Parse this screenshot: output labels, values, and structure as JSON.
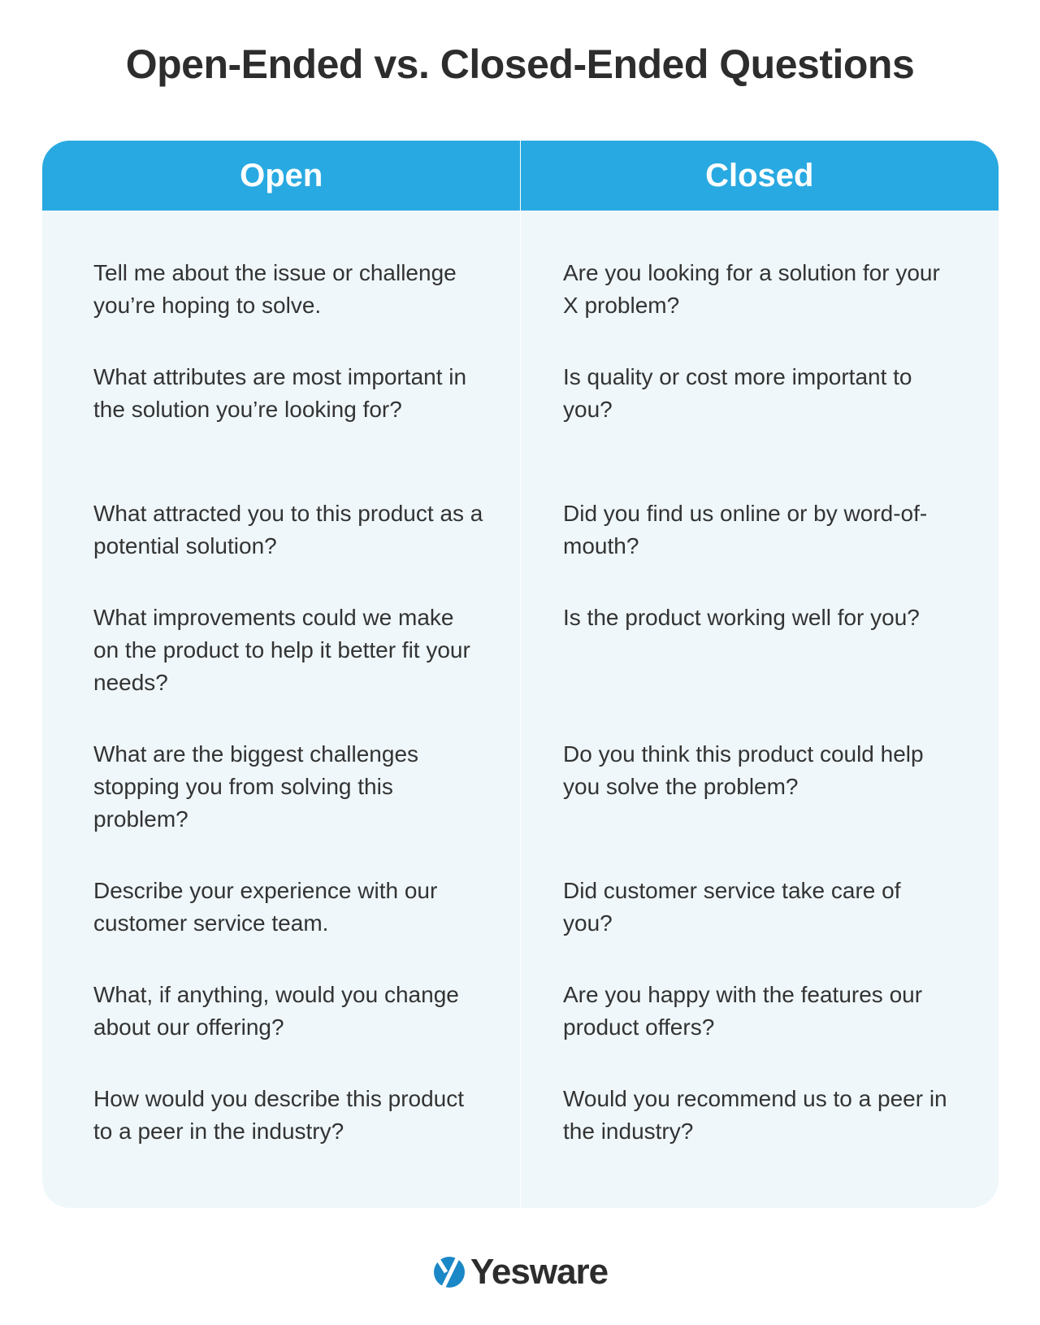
{
  "title": "Open-Ended vs. Closed-Ended Questions",
  "columns": [
    "Open",
    "Closed"
  ],
  "rows": [
    {
      "open": "Tell me about the issue or challenge you’re hoping to solve.",
      "closed": "Are you looking for a solution for your X problem?",
      "lines": 2
    },
    {
      "open": "What attributes are most important in the solution you’re looking for?",
      "closed": "Is quality or cost more important to you?",
      "lines": 3
    },
    {
      "open": "What attracted you to this product as a potential solution?",
      "closed": "Did you find us online or by word-of-mouth?",
      "lines": 2
    },
    {
      "open": "What improvements could we make on the product to help it better fit your needs?",
      "closed": "Is the product working well for you?",
      "lines": 3
    },
    {
      "open": "What are the biggest challenges stopping you from solving this problem?",
      "closed": "Do you think this product could help you solve the problem?",
      "lines": 3
    },
    {
      "open": "Describe your experience with our customer service team.",
      "closed": "Did customer service take care of you?",
      "lines": 2
    },
    {
      "open": "What, if anything, would you change about our offering?",
      "closed": "Are you happy with the features our product offers?",
      "lines": 2
    },
    {
      "open": "How would you describe this product to a peer in the industry?",
      "closed": "Would you recommend us to a peer in the industry?",
      "lines": 2
    }
  ],
  "logo": {
    "text": "Yesware",
    "icon": "yesware-logo-icon",
    "color": "#1a87c6"
  },
  "colors": {
    "header": "#29a9e1",
    "body": "#eff7fa",
    "text": "#333333"
  }
}
